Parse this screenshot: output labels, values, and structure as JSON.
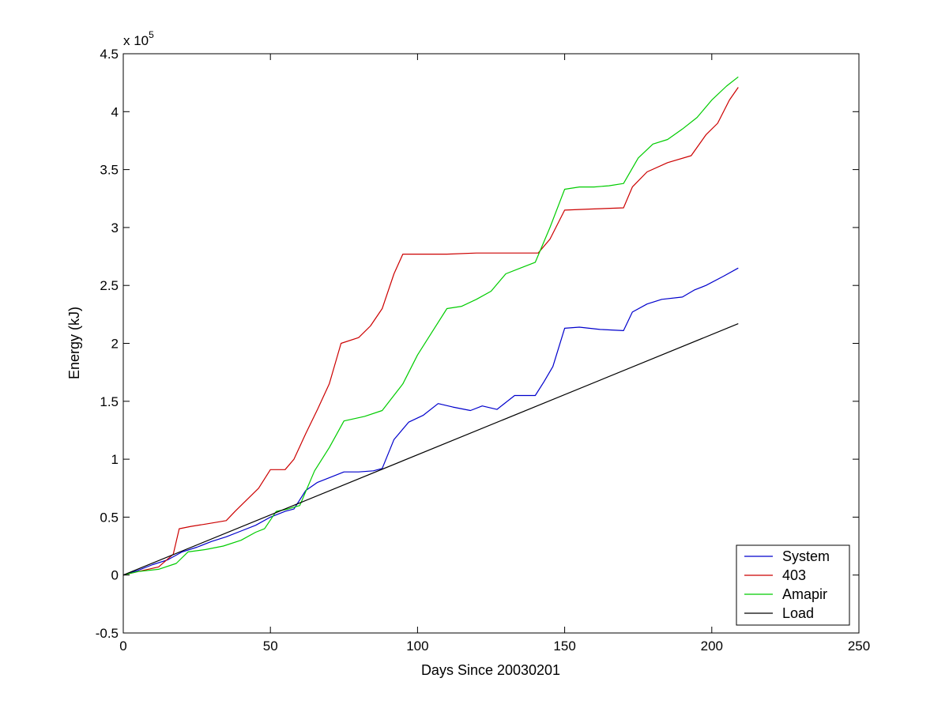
{
  "chart_data": {
    "type": "line",
    "title": "",
    "xlabel": "Days Since 20030201",
    "ylabel": "Energy (kJ)",
    "y_multiplier_label": "x 10",
    "y_multiplier_exponent": "5",
    "xlim": [
      0,
      250
    ],
    "ylim": [
      -0.5,
      4.5
    ],
    "y_scale_factor": 100000,
    "xticks": [
      0,
      50,
      100,
      150,
      200,
      250
    ],
    "xtick_labels": [
      "0",
      "50",
      "100",
      "150",
      "200",
      "250"
    ],
    "yticks": [
      -0.5,
      0,
      0.5,
      1,
      1.5,
      2,
      2.5,
      3,
      3.5,
      4,
      4.5
    ],
    "ytick_labels": [
      "-0.5",
      "0",
      "0.5",
      "1",
      "1.5",
      "2",
      "2.5",
      "3",
      "3.5",
      "4",
      "4.5"
    ],
    "grid": false,
    "legend_position": "bottom-right",
    "series": [
      {
        "name": "System",
        "color": "#0000cc",
        "x": [
          0,
          5,
          10,
          15,
          20,
          25,
          30,
          35,
          40,
          45,
          50,
          55,
          58,
          62,
          66,
          70,
          75,
          80,
          85,
          88,
          92,
          97,
          102,
          107,
          112,
          118,
          122,
          127,
          133,
          140,
          143,
          146,
          150,
          155,
          162,
          170,
          173,
          178,
          183,
          190,
          194,
          198,
          204,
          209
        ],
        "y": [
          0,
          0.04,
          0.09,
          0.13,
          0.2,
          0.24,
          0.29,
          0.33,
          0.38,
          0.43,
          0.5,
          0.55,
          0.57,
          0.73,
          0.8,
          0.84,
          0.89,
          0.89,
          0.9,
          0.92,
          1.17,
          1.32,
          1.38,
          1.48,
          1.45,
          1.42,
          1.46,
          1.43,
          1.55,
          1.55,
          1.67,
          1.8,
          2.13,
          2.14,
          2.12,
          2.11,
          2.27,
          2.34,
          2.38,
          2.4,
          2.46,
          2.5,
          2.58,
          2.65
        ]
      },
      {
        "name": "403",
        "color": "#cc0000",
        "x": [
          0,
          5,
          12,
          17,
          19,
          23,
          28,
          35,
          38,
          42,
          46,
          50,
          55,
          58,
          62,
          66,
          70,
          74,
          80,
          84,
          88,
          92,
          95,
          100,
          110,
          120,
          130,
          141,
          145,
          150,
          160,
          170,
          173,
          178,
          185,
          193,
          198,
          202,
          206,
          209
        ],
        "y": [
          0,
          0.03,
          0.07,
          0.18,
          0.4,
          0.42,
          0.44,
          0.47,
          0.55,
          0.65,
          0.75,
          0.91,
          0.91,
          1.0,
          1.22,
          1.43,
          1.65,
          2.0,
          2.05,
          2.15,
          2.3,
          2.6,
          2.77,
          2.77,
          2.77,
          2.78,
          2.78,
          2.78,
          2.9,
          3.15,
          3.16,
          3.17,
          3.35,
          3.48,
          3.56,
          3.62,
          3.8,
          3.9,
          4.1,
          4.21
        ]
      },
      {
        "name": "Amapir",
        "color": "#00cc00",
        "x": [
          0,
          5,
          12,
          18,
          22,
          28,
          34,
          40,
          45,
          48,
          52,
          56,
          60,
          65,
          70,
          75,
          82,
          88,
          95,
          100,
          105,
          110,
          115,
          120,
          125,
          130,
          135,
          140,
          145,
          150,
          155,
          160,
          165,
          170,
          175,
          180,
          185,
          190,
          195,
          200,
          205,
          209
        ],
        "y": [
          0,
          0.03,
          0.05,
          0.1,
          0.2,
          0.22,
          0.25,
          0.3,
          0.37,
          0.4,
          0.55,
          0.57,
          0.6,
          0.9,
          1.1,
          1.33,
          1.37,
          1.42,
          1.65,
          1.9,
          2.1,
          2.3,
          2.32,
          2.38,
          2.45,
          2.6,
          2.65,
          2.7,
          3.0,
          3.33,
          3.35,
          3.35,
          3.36,
          3.38,
          3.6,
          3.72,
          3.76,
          3.85,
          3.95,
          4.1,
          4.22,
          4.3
        ]
      },
      {
        "name": "Load",
        "color": "#000000",
        "x": [
          0,
          209
        ],
        "y": [
          0,
          2.17
        ]
      }
    ]
  }
}
